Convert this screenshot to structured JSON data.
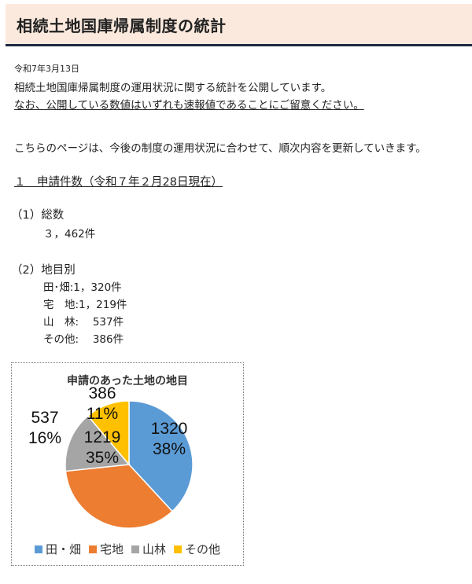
{
  "header": {
    "title": "相続土地国庫帰属制度の統計"
  },
  "date": "令和7年3月13日",
  "intro": {
    "line1": "相続土地国庫帰属制度の運用状況に関する統計を公開しています。",
    "line2": "なお、公開している数値はいずれも速報値であることにご留意ください。",
    "line3": "こちらのページは、今後の制度の運用状況に合わせて、順次内容を更新していきます。"
  },
  "section1": {
    "heading": "１　申請件数（令和７年２月28日現在）",
    "total_heading": "（1）総数",
    "total_value": "３，462件",
    "by_type_heading": "（2）地目別",
    "by_type": [
      "田･畑:1，320件",
      "宅　地:1，219件",
      "山　林:　 537件",
      "その他:　 386件"
    ]
  },
  "chart_data": {
    "type": "pie",
    "title": "申請のあった土地の地目",
    "categories": [
      "田・畑",
      "宅地",
      "山林",
      "その他"
    ],
    "values": [
      1320,
      1219,
      537,
      386
    ],
    "percent_labels": [
      "38%",
      "35%",
      "16%",
      "11%"
    ],
    "colors": [
      "#5b9bd5",
      "#ed7d31",
      "#a5a5a5",
      "#ffc000"
    ],
    "legend": "bottom"
  }
}
